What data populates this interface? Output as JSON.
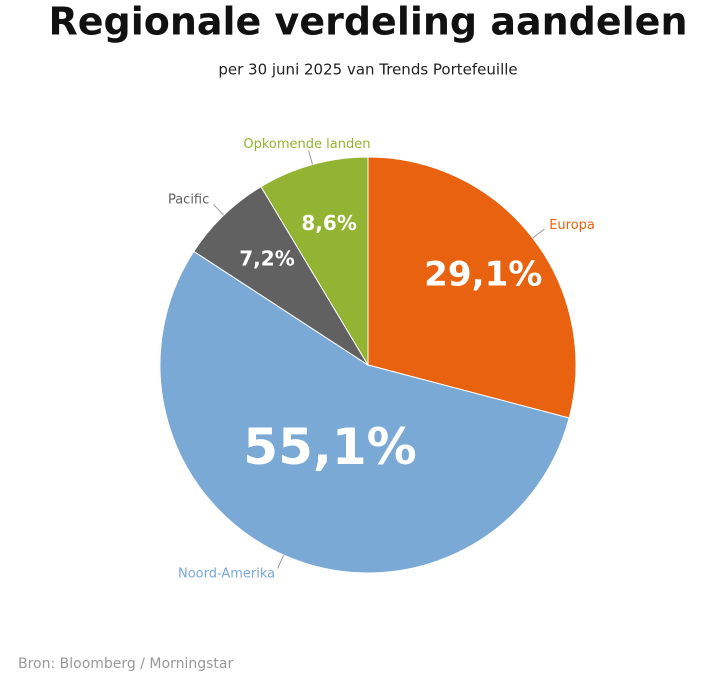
{
  "chart_data": {
    "type": "pie",
    "title": "Regionale verdeling aandelen",
    "subtitle": "per 30 juni 2025 van Trends Portefeuille",
    "categories": [
      "Europa",
      "Noord-Amerika",
      "Pacific",
      "Opkomende landen"
    ],
    "values": [
      29.1,
      55.1,
      7.2,
      8.6
    ],
    "value_labels": [
      "29,1%",
      "55,1%",
      "7,2%",
      "8,6%"
    ],
    "colors": [
      "#e8620f",
      "#7aa9d6",
      "#616161",
      "#93b332"
    ],
    "source": "Bron: Bloomberg / Morningstar"
  }
}
